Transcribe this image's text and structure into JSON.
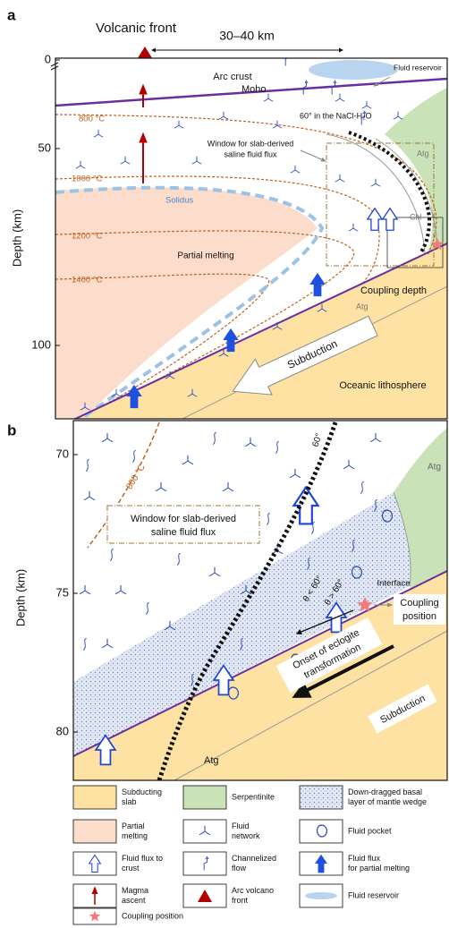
{
  "panel_a": {
    "label": "a",
    "volcanic_front": "Volcanic front",
    "distance": "30–40 km",
    "axis_label": "Depth (km)",
    "yticks": [
      0,
      50,
      100
    ],
    "arc_crust": "Arc crust",
    "fluid_reservoir": "Fluid reservoir",
    "moho": "Moho",
    "angle_60": "60° in the NaCl-H₂O",
    "window": [
      "Window for slab-derived",
      "saline fluid flux"
    ],
    "isotherms": [
      "800 °C",
      "1000 °C",
      "1200 °C",
      "1400 °C"
    ],
    "solidus": "Solidus",
    "partial_melting": "Partial melting",
    "atg_upper": "Atg",
    "chl": "Chl",
    "atg_lower": "Atg",
    "coupling_depth": "Coupling depth",
    "subduction": "Subduction",
    "oceanic_lithosphere": "Oceanic lithosphere"
  },
  "panel_b": {
    "label": "b",
    "axis_label": "Depth (km)",
    "yticks": [
      70,
      75,
      80
    ],
    "isotherm": "800 °C",
    "angle": "60°",
    "atg_upper": "Atg",
    "window": [
      "Window for slab-derived",
      "saline fluid flux"
    ],
    "interface": "Interface",
    "coupling_position": [
      "Coupling",
      "position"
    ],
    "theta_lt": "θ < 60°",
    "theta_gt": "θ > 60°",
    "eclogite": [
      "Onset of eclogite",
      "transformation"
    ],
    "subduction": "Subduction",
    "atg_lower": "Atg"
  },
  "legend": [
    [
      "Subducting",
      "slab"
    ],
    [
      "Serpentinite"
    ],
    [
      "Down-dragged basal",
      "layer of mantle wedge"
    ],
    [
      "Partial",
      "melting"
    ],
    [
      "Fluid",
      "network"
    ],
    [
      "Fluid pocket"
    ],
    [
      "Fluid flux to",
      "crust"
    ],
    [
      "Channelized",
      "flow"
    ],
    [
      "Fluid flux",
      "for partial melting"
    ],
    [
      "Magma",
      "ascent"
    ],
    [
      "Arc volcano",
      "front"
    ],
    [
      "Fluid reservoir"
    ],
    [
      "Coupling position"
    ]
  ]
}
